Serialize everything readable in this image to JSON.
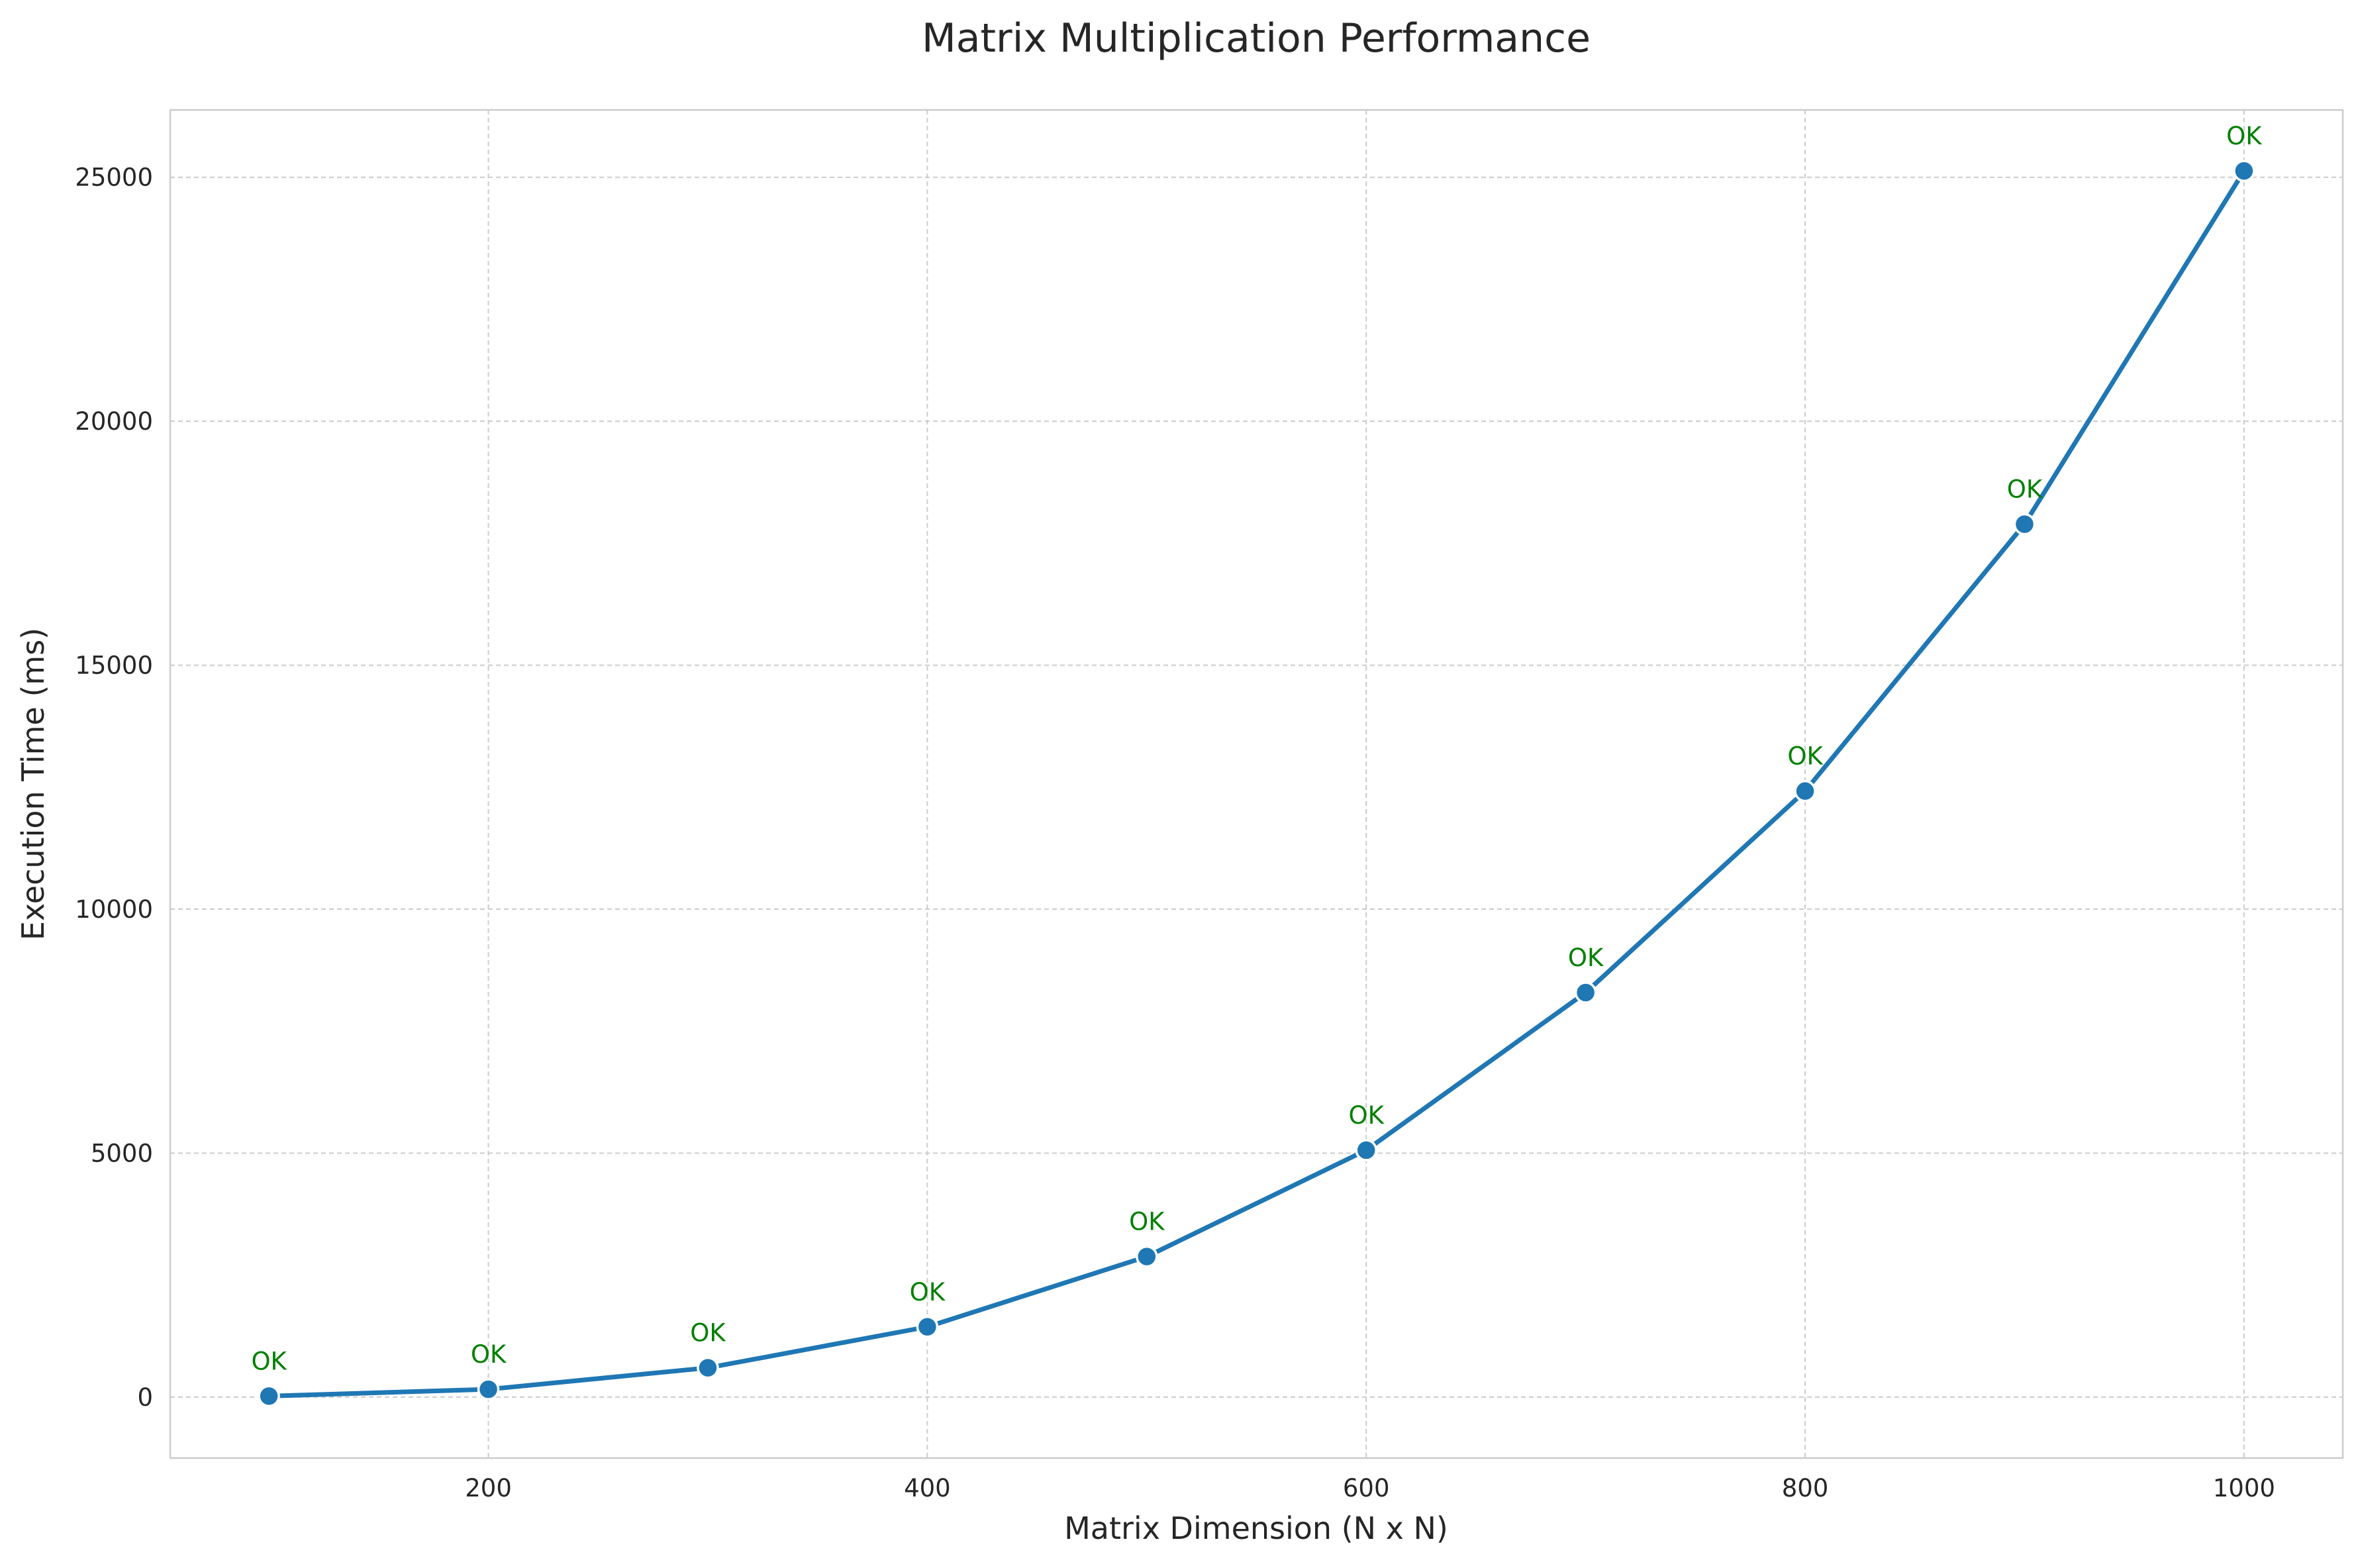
{
  "chart_data": {
    "type": "line",
    "title": "Matrix Multiplication Performance",
    "xlabel": "Matrix Dimension (N x N)",
    "ylabel": "Execution Time (ms)",
    "x": [
      100,
      200,
      300,
      400,
      500,
      600,
      700,
      800,
      900,
      1000
    ],
    "series": [
      {
        "values": [
          20,
          160,
          600,
          1440,
          2880,
          5060,
          8290,
          12420,
          17890,
          25130
        ],
        "color": "#1f77b4",
        "point_labels": [
          "OK",
          "OK",
          "OK",
          "OK",
          "OK",
          "OK",
          "OK",
          "OK",
          "OK",
          "OK"
        ],
        "point_label_color": "#008000"
      }
    ],
    "xlim": [
      55,
      1045
    ],
    "ylim": [
      -1250,
      26380
    ],
    "xticks": [
      200,
      400,
      600,
      800,
      1000
    ],
    "yticks": [
      0,
      5000,
      10000,
      15000,
      20000,
      25000
    ],
    "xtick_labels": [
      "200",
      "400",
      "600",
      "800",
      "1000"
    ],
    "ytick_labels": [
      "0",
      "5000",
      "10000",
      "15000",
      "20000",
      "25000"
    ],
    "grid": true,
    "grid_style": "dashed",
    "legend": "none"
  }
}
